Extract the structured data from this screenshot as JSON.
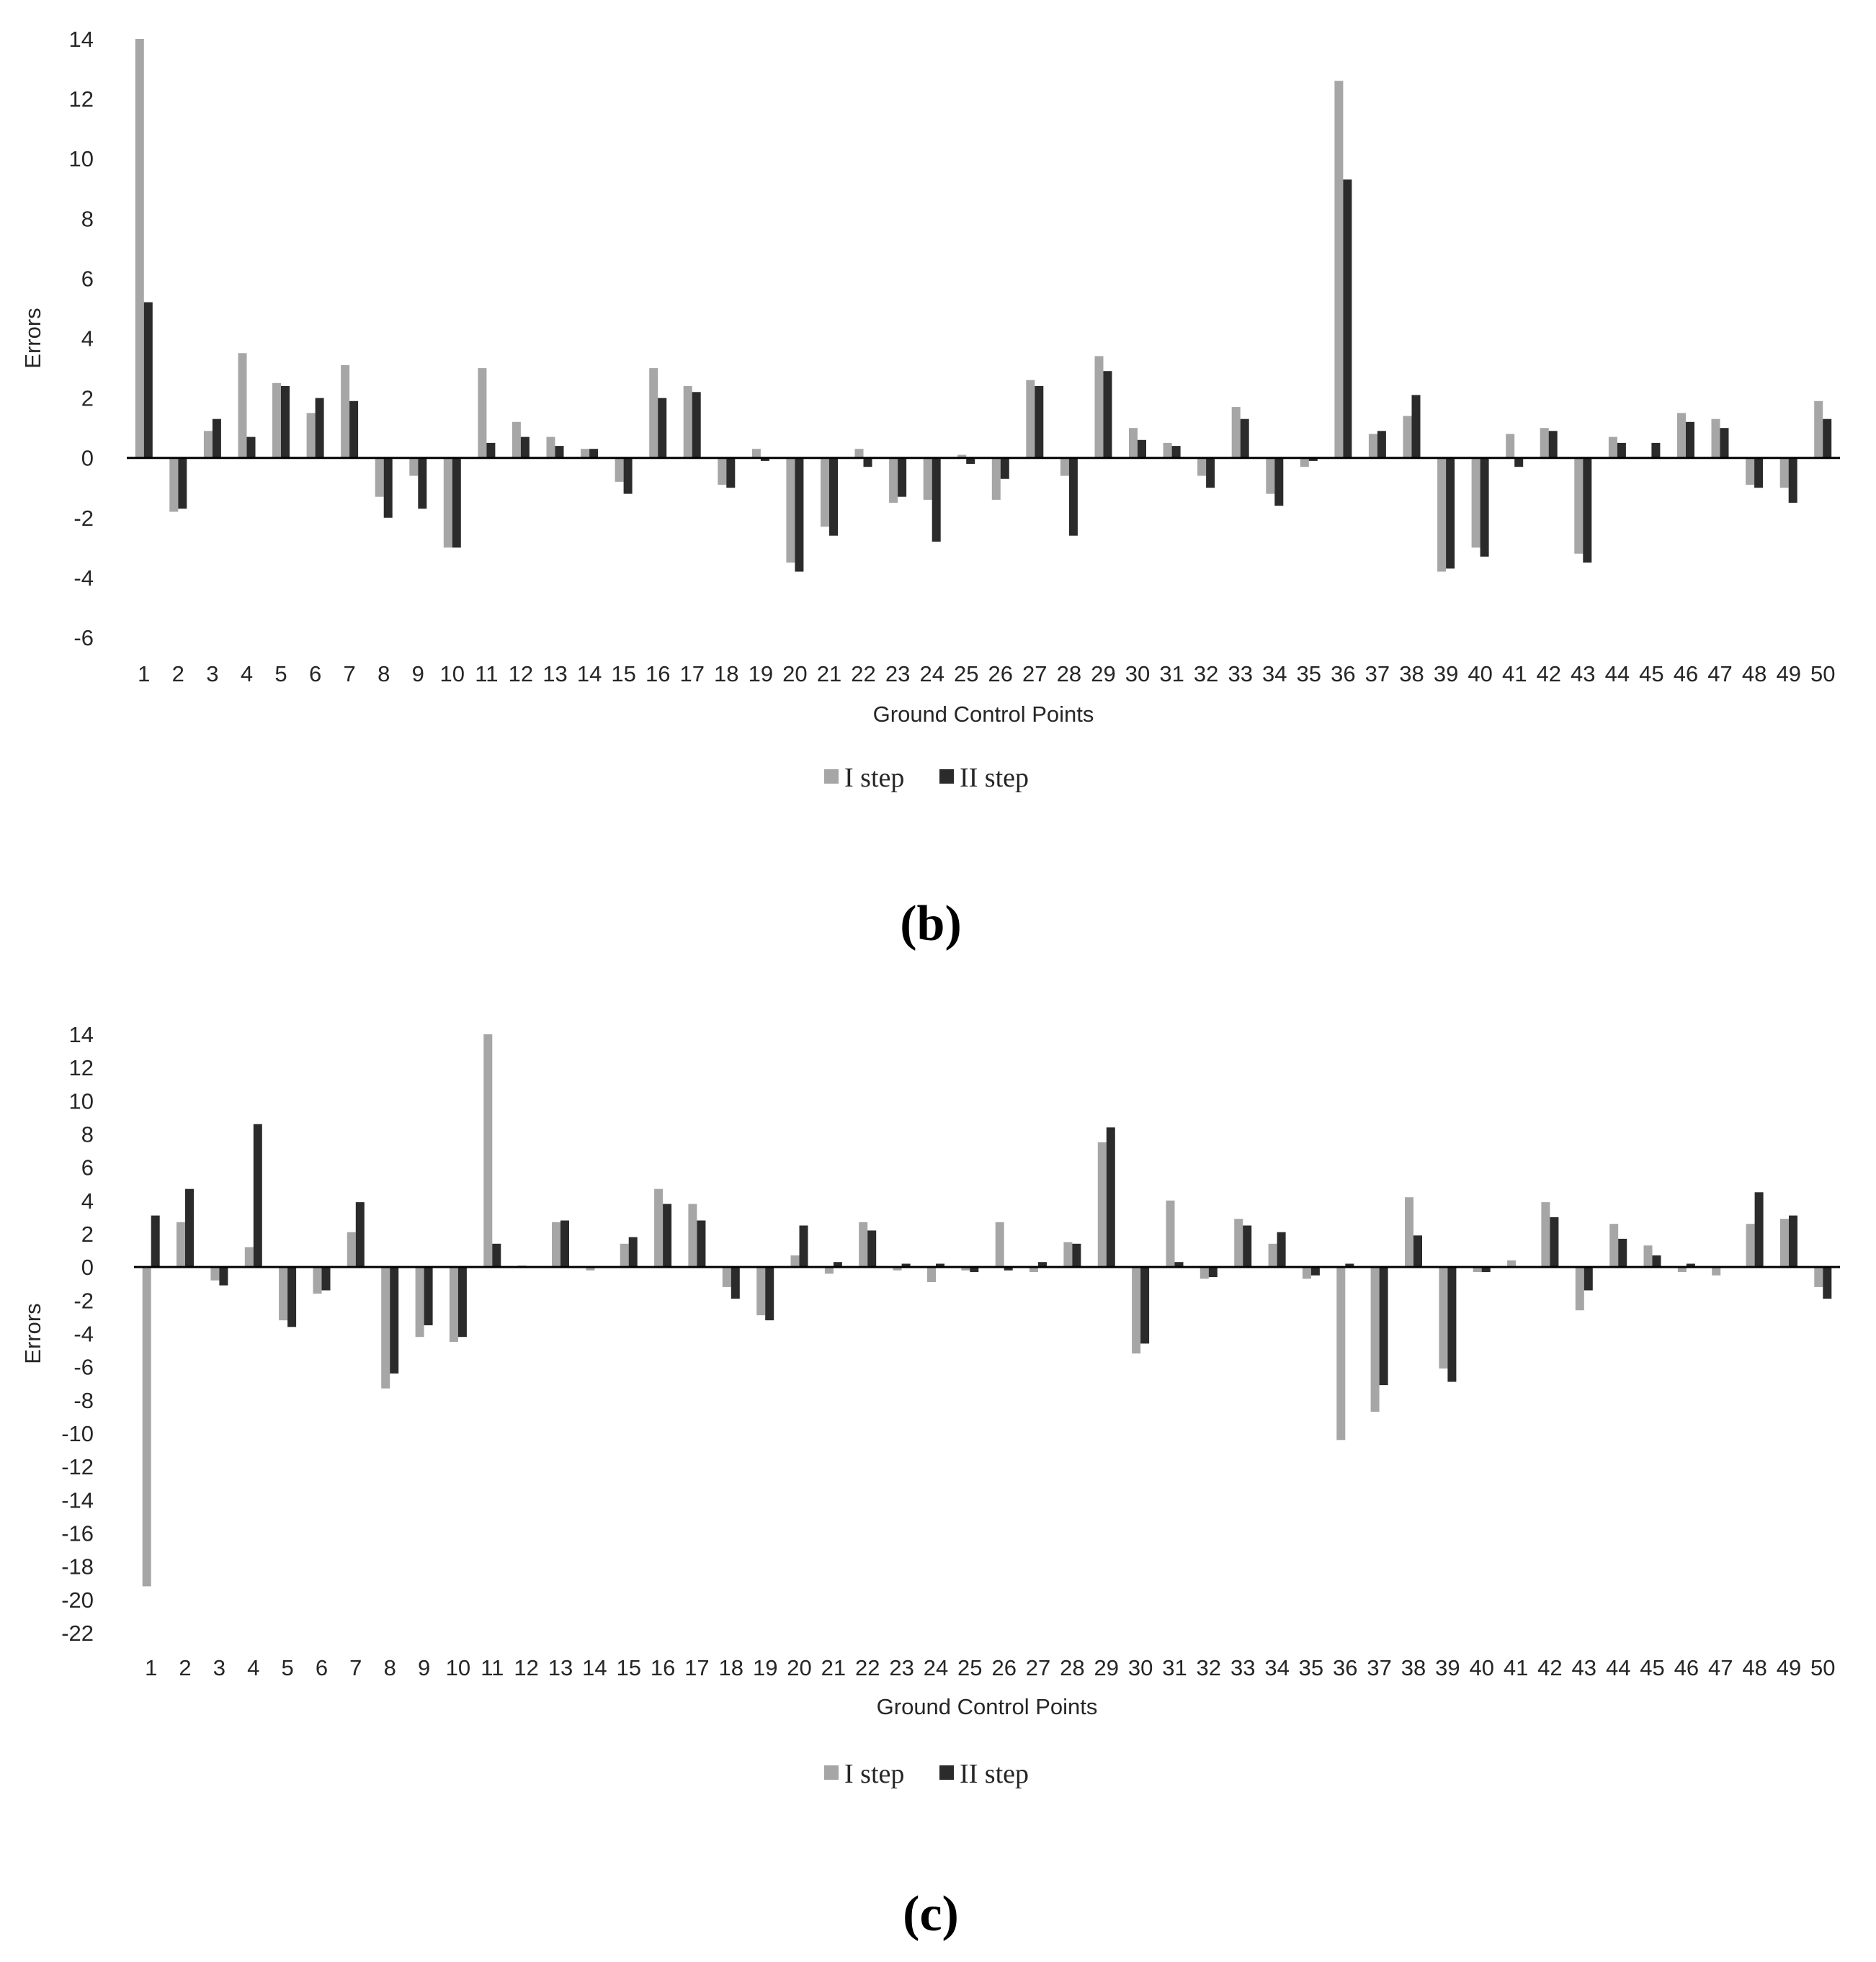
{
  "colors": {
    "series1": "#a6a6a6",
    "series2": "#2b2b2b",
    "axis": "#000000",
    "text": "#262626"
  },
  "chart_data": [
    {
      "type": "bar",
      "caption": "(b)",
      "xlabel": "Ground Control Points",
      "ylabel": "Errors",
      "ylim": [
        -6,
        14
      ],
      "yticks": [
        14,
        12,
        10,
        8,
        6,
        4,
        2,
        0,
        -2,
        -4,
        -6
      ],
      "grid": false,
      "legend_position": "bottom",
      "categories": [
        "1",
        "2",
        "3",
        "4",
        "5",
        "6",
        "7",
        "8",
        "9",
        "10",
        "11",
        "12",
        "13",
        "14",
        "15",
        "16",
        "17",
        "18",
        "19",
        "20",
        "21",
        "22",
        "23",
        "24",
        "25",
        "26",
        "27",
        "28",
        "29",
        "30",
        "31",
        "32",
        "33",
        "34",
        "35",
        "36",
        "37",
        "38",
        "39",
        "40",
        "41",
        "42",
        "43",
        "44",
        "45",
        "46",
        "47",
        "48",
        "49",
        "50"
      ],
      "series": [
        {
          "name": "I step",
          "color": "#a6a6a6",
          "values": [
            14.0,
            -1.8,
            0.9,
            3.5,
            2.5,
            1.5,
            3.1,
            -1.3,
            -0.6,
            -3.0,
            3.0,
            1.2,
            0.7,
            0.3,
            -0.8,
            3.0,
            2.4,
            -0.9,
            0.3,
            -3.5,
            -2.3,
            0.3,
            -1.5,
            -1.4,
            0.1,
            -1.4,
            2.6,
            -0.6,
            3.4,
            1.0,
            0.5,
            -0.6,
            1.7,
            -1.2,
            -0.3,
            12.6,
            0.8,
            1.4,
            -3.8,
            -3.0,
            0.8,
            1.0,
            -3.2,
            0.7,
            0.0,
            1.5,
            1.3,
            -0.9,
            -1.0,
            1.9
          ]
        },
        {
          "name": "II step",
          "color": "#2b2b2b",
          "values": [
            5.2,
            -1.7,
            1.3,
            0.7,
            2.4,
            2.0,
            1.9,
            -2.0,
            -1.7,
            -3.0,
            0.5,
            0.7,
            0.4,
            0.3,
            -1.2,
            2.0,
            2.2,
            -1.0,
            -0.1,
            -3.8,
            -2.6,
            -0.3,
            -1.3,
            -2.8,
            -0.2,
            -0.7,
            2.4,
            -2.6,
            2.9,
            0.6,
            0.4,
            -1.0,
            1.3,
            -1.6,
            -0.1,
            9.3,
            0.9,
            2.1,
            -3.7,
            -3.3,
            -0.3,
            0.9,
            -3.5,
            0.5,
            0.5,
            1.2,
            1.0,
            -1.0,
            -1.5,
            1.3
          ]
        }
      ]
    },
    {
      "type": "bar",
      "caption": "(c)",
      "xlabel": "Ground Control Points",
      "ylabel": "Errors",
      "ylim": [
        -22,
        14
      ],
      "yticks": [
        14,
        12,
        10,
        8,
        6,
        4,
        2,
        0,
        -2,
        -4,
        -6,
        -8,
        -10,
        -12,
        -14,
        -16,
        -18,
        -20,
        -22
      ],
      "grid": false,
      "legend_position": "bottom",
      "categories": [
        "1",
        "2",
        "3",
        "4",
        "5",
        "6",
        "7",
        "8",
        "9",
        "10",
        "11",
        "12",
        "13",
        "14",
        "15",
        "16",
        "17",
        "18",
        "19",
        "20",
        "21",
        "22",
        "23",
        "24",
        "25",
        "26",
        "27",
        "28",
        "29",
        "30",
        "31",
        "32",
        "33",
        "34",
        "35",
        "36",
        "37",
        "38",
        "39",
        "40",
        "41",
        "42",
        "43",
        "44",
        "45",
        "46",
        "47",
        "48",
        "49",
        "50"
      ],
      "series": [
        {
          "name": "I step",
          "color": "#a6a6a6",
          "values": [
            -19.2,
            2.7,
            -0.8,
            1.2,
            -3.2,
            -1.6,
            2.1,
            -7.3,
            -4.2,
            -4.5,
            14.0,
            0.1,
            2.7,
            -0.2,
            1.4,
            4.7,
            3.8,
            -1.2,
            -2.9,
            0.7,
            -0.4,
            2.7,
            -0.2,
            -0.9,
            -0.2,
            2.7,
            -0.3,
            1.5,
            7.5,
            -5.2,
            4.0,
            -0.7,
            2.9,
            1.4,
            -0.7,
            -10.4,
            -8.7,
            4.2,
            -6.1,
            -0.3,
            0.4,
            3.9,
            -2.6,
            2.6,
            1.3,
            -0.3,
            -0.5,
            2.6,
            2.9,
            -1.2
          ]
        },
        {
          "name": "II step",
          "color": "#2b2b2b",
          "values": [
            3.1,
            4.7,
            -1.1,
            8.6,
            -3.6,
            -1.4,
            3.9,
            -6.4,
            -3.5,
            -4.2,
            1.4,
            0.0,
            2.8,
            0.0,
            1.8,
            3.8,
            2.8,
            -1.9,
            -3.2,
            2.5,
            0.3,
            2.2,
            0.2,
            0.2,
            -0.3,
            -0.2,
            0.3,
            1.4,
            8.4,
            -4.6,
            0.3,
            -0.6,
            2.5,
            2.1,
            -0.5,
            0.2,
            -7.1,
            1.9,
            -6.9,
            -0.3,
            0.0,
            3.0,
            -1.4,
            1.7,
            0.7,
            0.2,
            0.0,
            4.5,
            3.1,
            -1.9
          ]
        }
      ]
    }
  ]
}
